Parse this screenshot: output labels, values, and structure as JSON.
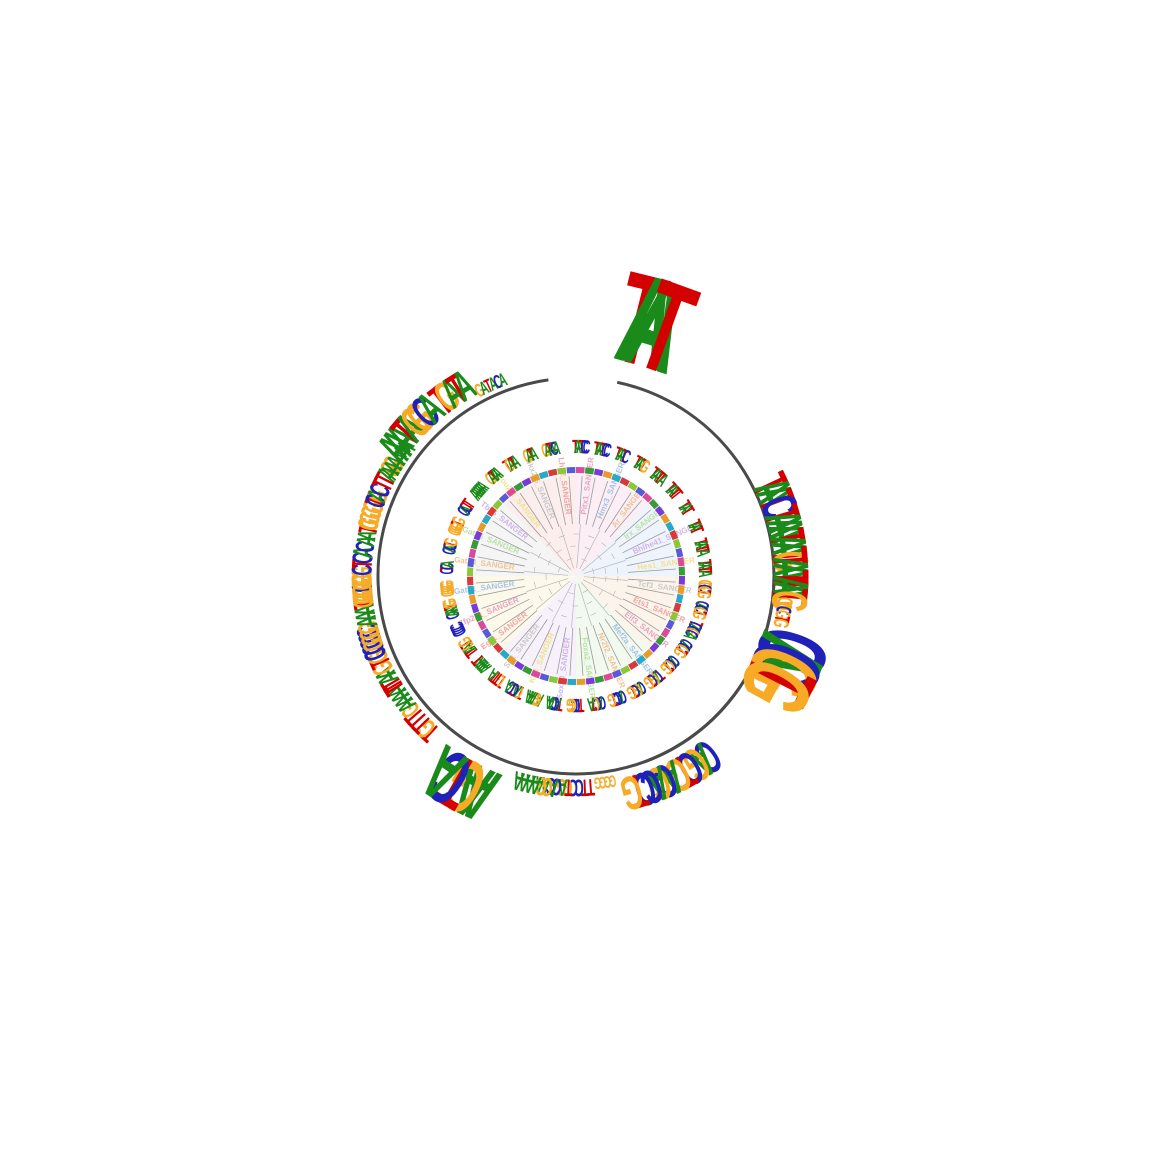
{
  "figure": {
    "type": "radial sequence-logo motif tree",
    "colors": {
      "A": "#1a8a1a",
      "C": "#1f22b8",
      "G": "#f7aa26",
      "T": "#d40000"
    },
    "tree_leaf_colors": [
      "#e8a0c0",
      "#a0c0e8",
      "#f0c090",
      "#b8e0a0",
      "#d0b0e8",
      "#f0e08a",
      "#c8c8c8",
      "#f2a0a0"
    ]
  },
  "outer_logos": [
    {
      "motif": "TAAT"
    },
    {
      "motif": "TAATC"
    },
    {
      "motif": "TAAA"
    },
    {
      "motif": "TAATG"
    },
    {
      "motif": "TAATT"
    },
    {
      "motif": "TAATG"
    },
    {
      "motif": "GGCGTG"
    },
    {
      "motif": "CACGTG"
    },
    {
      "motif": "CAGCTGACG"
    },
    {
      "motif": "ACCTG"
    },
    {
      "motif": "GGGG"
    },
    {
      "motif": "TTCCGG"
    },
    {
      "motif": "TACCAA"
    },
    {
      "motif": "AGGAAAA"
    },
    {
      "motif": "AAGTCA"
    },
    {
      "motif": "TGTTT"
    },
    {
      "motif": "GAAAAT"
    },
    {
      "motif": "TTAAGTG"
    },
    {
      "motif": "CCCCC"
    },
    {
      "motif": "GGGGAAATGGCG"
    },
    {
      "motif": "GGGGGG"
    },
    {
      "motif": "CTCA"
    },
    {
      "motif": "CAATG"
    },
    {
      "motif": "GGGGTG"
    },
    {
      "motif": "CACTTAGG"
    },
    {
      "motif": "AAAAAA"
    },
    {
      "motif": "AAATAGGCA"
    },
    {
      "motif": "TGATA"
    },
    {
      "motif": "GATACA"
    }
  ],
  "inner_logos": [
    {
      "motif": "TAATCC"
    },
    {
      "motif": "TAATCC"
    },
    {
      "motif": "TAATC"
    },
    {
      "motif": "TAATG"
    },
    {
      "motif": "TAATTA"
    },
    {
      "motif": "TAATT"
    },
    {
      "motif": "TAAT"
    },
    {
      "motif": "TAAT"
    },
    {
      "motif": "TAATTA"
    },
    {
      "motif": "TAATTA"
    },
    {
      "motif": "GGCGTG"
    },
    {
      "motif": "CACGTG"
    },
    {
      "motif": "TCACGCA"
    },
    {
      "motif": "CACGTG"
    },
    {
      "motif": "CACGTG"
    },
    {
      "motif": "TCAGCTG"
    },
    {
      "motif": "CAGCTG"
    },
    {
      "motif": "CACCTG"
    },
    {
      "motif": "CACGTA"
    },
    {
      "motif": "TTCCGG"
    },
    {
      "motif": "TACCAA"
    },
    {
      "motif": "AGGAAA"
    },
    {
      "motif": "TGACTCA"
    },
    {
      "motif": "TGTTTA"
    },
    {
      "motif": "AAAAAT"
    },
    {
      "motif": "TTAAGTG"
    },
    {
      "motif": "CCCC"
    },
    {
      "motif": "CAAATGG"
    },
    {
      "motif": "GGGGG"
    },
    {
      "motif": "CTCA"
    },
    {
      "motif": "CACTG"
    },
    {
      "motif": "GGGGTG"
    },
    {
      "motif": "CACTT"
    },
    {
      "motif": "AAAAAA"
    },
    {
      "motif": "GATAA"
    },
    {
      "motif": "TGATA"
    },
    {
      "motif": "GATA"
    },
    {
      "motif": "GATACA"
    }
  ],
  "center_labels": [
    {
      "text": "Pitx1_SANGER"
    },
    {
      "text": "Hmx3_SANGER"
    },
    {
      "text": "Ar_SANGER"
    },
    {
      "text": "Irx_SANGER"
    },
    {
      "text": "Bhlhe41_SANGER"
    },
    {
      "text": "Hes1_SANGER"
    },
    {
      "text": "Tcf3_SANGER"
    },
    {
      "text": "Ets1_SANGER"
    },
    {
      "text": "Elf3_SANGER"
    },
    {
      "text": "Mef2a_SANGER"
    },
    {
      "text": "Nr2f2_SANGER"
    },
    {
      "text": "Foxa2_SANGER"
    },
    {
      "text": "Sox10_SANGER"
    },
    {
      "text": "Klf4_SANGER"
    },
    {
      "text": "Sp1_SANGER"
    },
    {
      "text": "Egr1_SANGER"
    },
    {
      "text": "Zfp281_SANGER"
    },
    {
      "text": "Gata1_SANGER"
    },
    {
      "text": "Gata4_SANGER"
    },
    {
      "text": "Gata6_SANGER"
    },
    {
      "text": "Tbx5_SANGER"
    },
    {
      "text": "Pou2f1_SANGER"
    },
    {
      "text": "Nkx2-5_SANGER"
    },
    {
      "text": "Lhx2_SANGER"
    }
  ]
}
